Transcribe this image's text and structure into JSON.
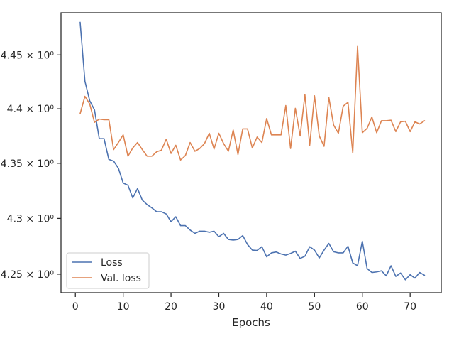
{
  "chart_data": {
    "type": "line",
    "title": "",
    "xlabel": "Epochs",
    "ylabel": "",
    "xlim": [
      -3,
      76.5
    ],
    "ylim": [
      4.2335,
      4.4895
    ],
    "yscale": "log",
    "grid": false,
    "legend_position": "lower-left",
    "x_ticks": [
      0,
      10,
      20,
      30,
      40,
      50,
      60,
      70
    ],
    "y_ticks": [
      {
        "value": 4.25,
        "label": "4.25 × 10⁰"
      },
      {
        "value": 4.3,
        "label": "4.3 × 10⁰"
      },
      {
        "value": 4.35,
        "label": "4.35 × 10⁰"
      },
      {
        "value": 4.4,
        "label": "4.4 × 10⁰"
      },
      {
        "value": 4.45,
        "label": "4.45 × 10⁰"
      }
    ],
    "x": [
      1,
      2,
      3,
      4,
      5,
      6,
      7,
      8,
      9,
      10,
      11,
      12,
      13,
      14,
      15,
      16,
      17,
      18,
      19,
      20,
      21,
      22,
      23,
      24,
      25,
      26,
      27,
      28,
      29,
      30,
      31,
      32,
      33,
      34,
      35,
      36,
      37,
      38,
      39,
      40,
      41,
      42,
      43,
      44,
      45,
      46,
      47,
      48,
      49,
      50,
      51,
      52,
      53,
      54,
      55,
      56,
      57,
      58,
      59,
      60,
      61,
      62,
      63,
      64,
      65,
      66,
      67,
      68,
      69,
      70,
      71,
      72,
      73
    ],
    "series": [
      {
        "name": "Loss",
        "color": "#4c72b0",
        "values": [
          4.4805,
          4.4255,
          4.4075,
          4.399,
          4.3725,
          4.3725,
          4.3535,
          4.352,
          4.3455,
          4.332,
          4.33,
          4.3185,
          4.327,
          4.3165,
          4.3125,
          4.3095,
          4.306,
          4.306,
          4.304,
          4.297,
          4.3015,
          4.2935,
          4.2935,
          4.2895,
          4.2865,
          4.2885,
          4.2885,
          4.2875,
          4.2885,
          4.2835,
          4.2865,
          4.281,
          4.2805,
          4.281,
          4.2845,
          4.2765,
          4.2715,
          4.2712,
          4.2745,
          4.2655,
          4.269,
          4.2698,
          4.268,
          4.267,
          4.2685,
          4.2705,
          4.264,
          4.266,
          4.2745,
          4.2715,
          4.2645,
          4.2715,
          4.2775,
          4.27,
          4.269,
          4.269,
          4.275,
          4.26,
          4.2575,
          4.2795,
          4.255,
          4.2515,
          4.252,
          4.253,
          4.2485,
          4.2575,
          4.248,
          4.251,
          4.245,
          4.2495,
          4.2465,
          4.2515,
          4.249
        ]
      },
      {
        "name": "Val. loss",
        "color": "#dd8452",
        "values": [
          4.3955,
          4.4115,
          4.4045,
          4.3875,
          4.3905,
          4.39,
          4.39,
          4.3625,
          4.369,
          4.376,
          4.3565,
          4.364,
          4.369,
          4.3625,
          4.3565,
          4.3565,
          4.3605,
          4.362,
          4.372,
          4.359,
          4.3665,
          4.353,
          4.357,
          4.369,
          4.361,
          4.3635,
          4.368,
          4.3775,
          4.363,
          4.3775,
          4.368,
          4.361,
          4.3805,
          4.358,
          4.3815,
          4.3815,
          4.364,
          4.374,
          4.369,
          4.391,
          4.376,
          4.376,
          4.376,
          4.403,
          4.3635,
          4.4005,
          4.375,
          4.413,
          4.3665,
          4.412,
          4.375,
          4.3655,
          4.4105,
          4.385,
          4.3775,
          4.4025,
          4.406,
          4.3595,
          4.458,
          4.378,
          4.382,
          4.3925,
          4.378,
          4.389,
          4.389,
          4.3895,
          4.379,
          4.388,
          4.3885,
          4.379,
          4.388,
          4.386,
          4.389
        ]
      }
    ]
  }
}
